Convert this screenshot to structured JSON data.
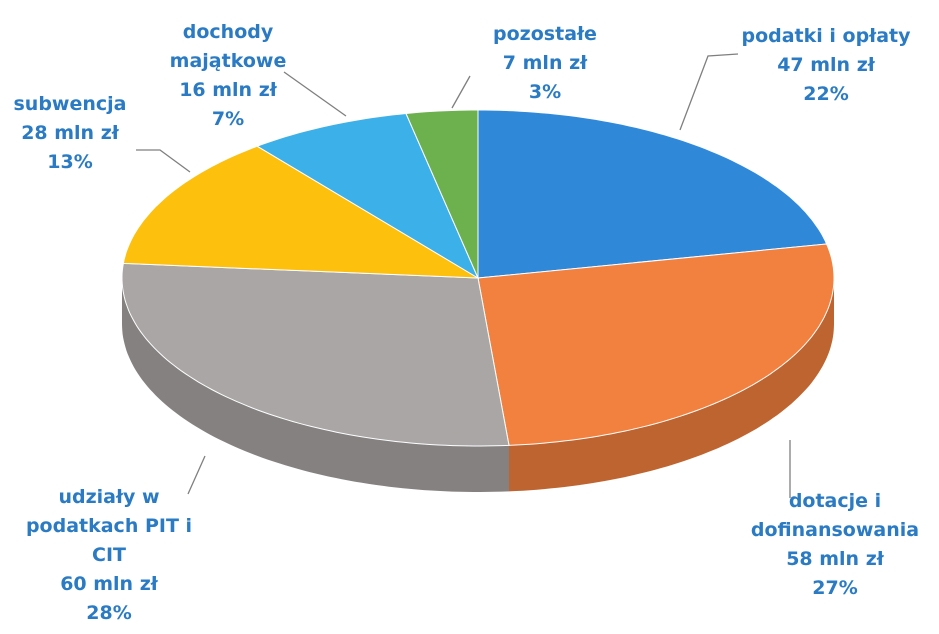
{
  "chart_data": {
    "type": "pie3d",
    "categories": [
      "podatki i opłaty",
      "dotacje i dofinansowania",
      "udziały w podatkach PIT i CIT",
      "subwencja",
      "dochody majątkowe",
      "pozostałe"
    ],
    "values": [
      47,
      58,
      60,
      28,
      16,
      7
    ],
    "value_labels": [
      "47 mln zł",
      "58 mln zł",
      "60 mln zł",
      "28 mln zł",
      "16 mln zł",
      "7 mln zł"
    ],
    "percentages": [
      22,
      27,
      28,
      13,
      7,
      3
    ],
    "percentage_labels": [
      "22%",
      "27%",
      "28%",
      "13%",
      "7%",
      "3%"
    ],
    "colors": [
      "#2f88d8",
      "#f2803e",
      "#aaa6a6",
      "#fdc00c",
      "#3cb0e8",
      "#6cb14d"
    ]
  }
}
